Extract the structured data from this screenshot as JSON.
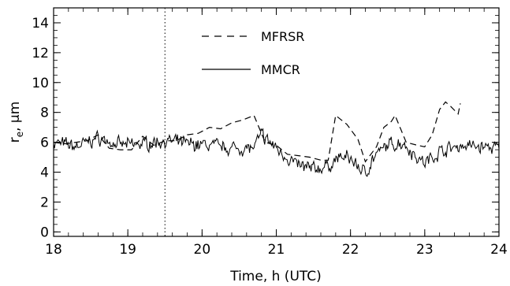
{
  "chart_data": {
    "type": "line",
    "xlabel": "Time, h (UTC)",
    "ylabel": "r",
    "ylabel_sub": "e",
    "ylabel_unit": ", μm",
    "xlim": [
      18,
      24
    ],
    "ylim": [
      -0.3,
      15
    ],
    "xticks": [
      18,
      19,
      20,
      21,
      22,
      23,
      24
    ],
    "xtick_labels": [
      "18",
      "19",
      "20",
      "21",
      "22",
      "23",
      "24"
    ],
    "yticks": [
      0,
      2,
      4,
      6,
      8,
      10,
      12,
      14
    ],
    "ytick_labels": [
      "0",
      "2",
      "4",
      "6",
      "8",
      "10",
      "12",
      "14"
    ],
    "minor_x_step": 0.2,
    "minor_y_step": 0.5,
    "grid": false,
    "legend_position": "top-center",
    "vertical_marker": {
      "x": 19.5,
      "style": "dotted"
    },
    "series": [
      {
        "name": "MFRSR",
        "style": "dashed",
        "color": "#000000",
        "points": [
          [
            18.0,
            6.0
          ],
          [
            18.15,
            5.9
          ],
          [
            18.3,
            6.0
          ],
          [
            18.45,
            6.1
          ],
          [
            18.6,
            6.5
          ],
          [
            18.75,
            5.6
          ],
          [
            18.9,
            5.5
          ],
          [
            19.05,
            5.5
          ],
          [
            19.2,
            6.4
          ],
          [
            19.35,
            5.8
          ],
          [
            19.5,
            6.1
          ],
          [
            19.65,
            6.1
          ],
          [
            19.8,
            6.5
          ],
          [
            19.95,
            6.6
          ],
          [
            20.1,
            7.0
          ],
          [
            20.25,
            6.9
          ],
          [
            20.4,
            7.3
          ],
          [
            20.55,
            7.5
          ],
          [
            20.7,
            7.8
          ],
          [
            20.85,
            6.0
          ],
          [
            21.0,
            5.8
          ],
          [
            21.15,
            5.2
          ],
          [
            21.3,
            5.1
          ],
          [
            21.45,
            5.0
          ],
          [
            21.6,
            4.8
          ],
          [
            21.7,
            4.8
          ],
          [
            21.8,
            7.8
          ],
          [
            21.95,
            7.2
          ],
          [
            22.1,
            6.2
          ],
          [
            22.2,
            4.7
          ],
          [
            22.35,
            5.7
          ],
          [
            22.45,
            7.0
          ],
          [
            22.55,
            7.4
          ],
          [
            22.6,
            7.8
          ],
          [
            22.75,
            6.0
          ],
          [
            22.9,
            5.8
          ],
          [
            23.0,
            5.7
          ],
          [
            23.1,
            6.5
          ],
          [
            23.2,
            8.2
          ],
          [
            23.28,
            8.7
          ],
          [
            23.35,
            8.4
          ],
          [
            23.45,
            7.9
          ],
          [
            23.48,
            8.6
          ]
        ]
      },
      {
        "name": "MMCR",
        "style": "solid",
        "color": "#000000",
        "profile": [
          [
            18.0,
            6.0
          ],
          [
            18.3,
            5.7
          ],
          [
            18.6,
            6.3
          ],
          [
            18.9,
            5.8
          ],
          [
            19.2,
            5.9
          ],
          [
            19.5,
            6.1
          ],
          [
            19.8,
            5.9
          ],
          [
            20.1,
            5.8
          ],
          [
            20.4,
            5.6
          ],
          [
            20.7,
            5.6
          ],
          [
            20.8,
            6.5
          ],
          [
            21.0,
            5.6
          ],
          [
            21.15,
            5.0
          ],
          [
            21.3,
            4.4
          ],
          [
            21.5,
            4.2
          ],
          [
            21.7,
            4.4
          ],
          [
            21.85,
            5.0
          ],
          [
            22.0,
            4.9
          ],
          [
            22.2,
            3.9
          ],
          [
            22.3,
            4.9
          ],
          [
            22.5,
            5.8
          ],
          [
            22.7,
            6.0
          ],
          [
            22.9,
            5.0
          ],
          [
            23.0,
            4.6
          ],
          [
            23.2,
            5.4
          ],
          [
            23.5,
            5.8
          ],
          [
            24.0,
            5.6
          ]
        ],
        "noise_amplitude": 0.55,
        "sample_step": 0.012,
        "seed": 7
      }
    ]
  }
}
